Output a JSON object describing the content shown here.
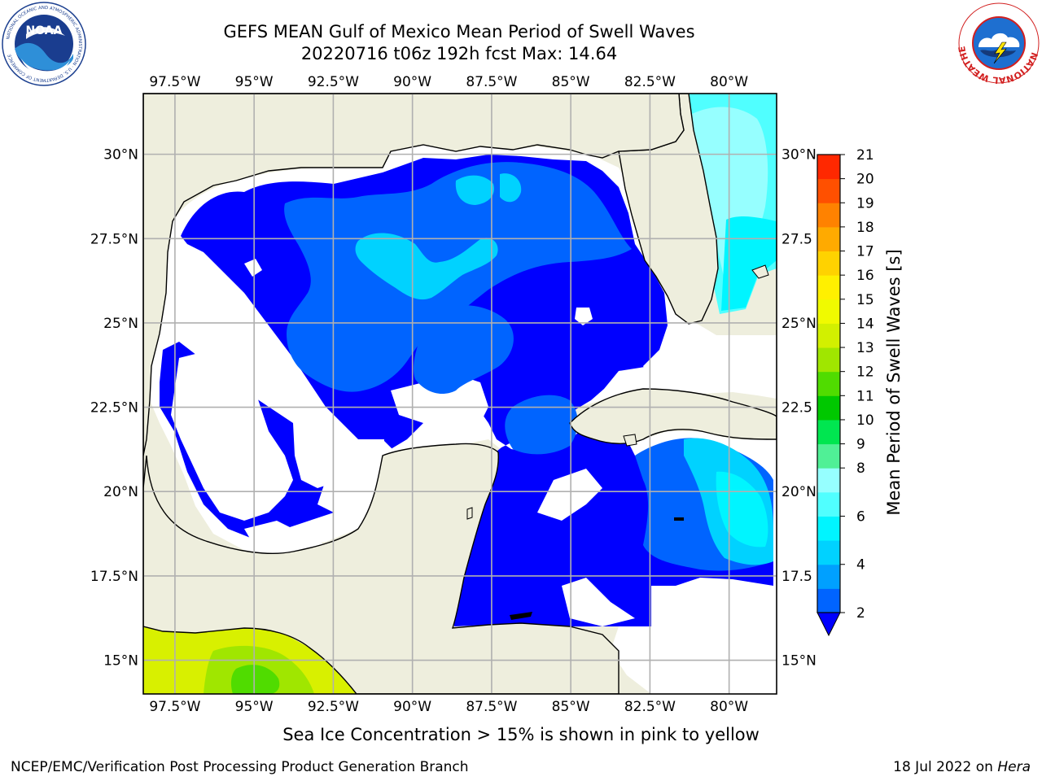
{
  "header": {
    "title": "GEFS MEAN Gulf of Mexico Mean Period of Swell Waves",
    "subtitle": "20220716 t06z 192h fcst   Max: 14.64"
  },
  "logos": {
    "left": "noaa-logo",
    "left_text": "NOAA",
    "left_ring_text": "NATIONAL OCEANIC AND ATMOSPHERIC ADMINISTRATION · U.S. DEPARTMENT OF COMMERCE",
    "right": "national-weather-service-logo",
    "right_ring_text": "NATIONAL WEATHER SERVICE"
  },
  "map": {
    "projection": "lat-lon",
    "lon_range": [
      -98.5,
      -78.5
    ],
    "lat_range": [
      14.0,
      31.8
    ],
    "grid": true,
    "lon_ticks": [
      {
        "value": -97.5,
        "label": "97.5°W"
      },
      {
        "value": -95,
        "label": "95°W"
      },
      {
        "value": -92.5,
        "label": "92.5°W"
      },
      {
        "value": -90,
        "label": "90°W"
      },
      {
        "value": -87.5,
        "label": "87.5°W"
      },
      {
        "value": -85,
        "label": "85°W"
      },
      {
        "value": -82.5,
        "label": "82.5°W"
      },
      {
        "value": -80,
        "label": "80°W"
      }
    ],
    "lat_ticks_left": [
      {
        "value": 30,
        "label": "30°N"
      },
      {
        "value": 27.5,
        "label": "27.5°N"
      },
      {
        "value": 25,
        "label": "25°N"
      },
      {
        "value": 22.5,
        "label": "22.5°N"
      },
      {
        "value": 20,
        "label": "20°N"
      },
      {
        "value": 17.5,
        "label": "17.5°N"
      },
      {
        "value": 15,
        "label": "15°N"
      }
    ],
    "lat_ticks_right": [
      {
        "value": 30,
        "label": "30°N"
      },
      {
        "value": 27.5,
        "label": "27.5"
      },
      {
        "value": 25,
        "label": "25°N"
      },
      {
        "value": 22.5,
        "label": "22.5"
      },
      {
        "value": 20,
        "label": "20°N"
      },
      {
        "value": 17.5,
        "label": "17.5"
      },
      {
        "value": 15,
        "label": "15°N"
      }
    ],
    "land_color": "#eeeedd",
    "coastline_color": "#000000"
  },
  "colorbar": {
    "label": "Mean Period of Swell Waves [s]",
    "units": "s",
    "extend": "min",
    "levels": [
      2,
      3,
      4,
      5,
      6,
      7,
      8,
      9,
      10,
      11,
      12,
      13,
      14,
      15,
      16,
      17,
      18,
      19,
      20,
      21
    ],
    "tick_labels": [
      "2",
      "4",
      "6",
      "8",
      "9",
      "10",
      "11",
      "12",
      "13",
      "14",
      "15",
      "16",
      "17",
      "18",
      "19",
      "20",
      "21"
    ],
    "colors": [
      "#0064ff",
      "#00a0ff",
      "#00d2ff",
      "#00f5ff",
      "#50ffff",
      "#96ffff",
      "#50f096",
      "#00e650",
      "#00c800",
      "#50dc00",
      "#a0e600",
      "#d2f000",
      "#f0fa00",
      "#fff000",
      "#ffd200",
      "#ffaa00",
      "#ff8200",
      "#ff5000",
      "#ff2800",
      "#ff0000"
    ],
    "under_color": "#0000ff"
  },
  "chart_data": {
    "type": "heatmap",
    "variable": "Mean Period of Swell Waves",
    "units": "s",
    "max": 14.64,
    "regions": [
      {
        "area": "northern/central Gulf of Mexico",
        "approx_value": "2-4"
      },
      {
        "area": "west and south Gulf interior",
        "approx_value": "<2"
      },
      {
        "area": "Atlantic east of Florida",
        "approx_value": "4-8"
      },
      {
        "area": "NW Caribbean south of Cuba",
        "approx_value": "2-6"
      },
      {
        "area": "Eastern Pacific off Mexico",
        "approx_value": "12-14"
      }
    ]
  },
  "footer": {
    "caption": "Sea Ice Concentration > 15% is shown in pink to yellow",
    "credit": "NCEP/EMC/Verification Post Processing Product Generation Branch",
    "run_date": "18 Jul 2022 on",
    "run_host": "Hera"
  }
}
